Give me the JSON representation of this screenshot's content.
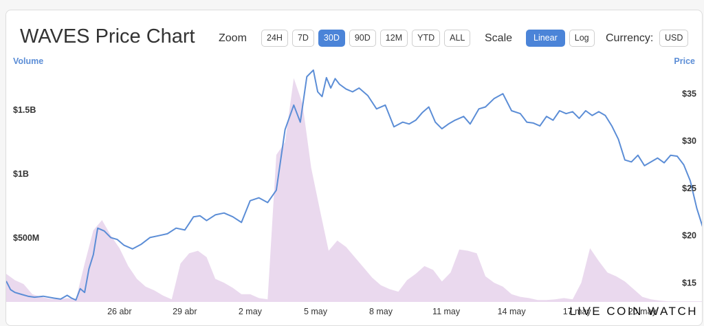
{
  "header": {
    "title": "WAVES Price Chart",
    "zoom_label": "Zoom",
    "zoom_options": [
      "24H",
      "7D",
      "30D",
      "90D",
      "12M",
      "YTD",
      "ALL"
    ],
    "zoom_active": "30D",
    "scale_label": "Scale",
    "scale_options": [
      "Linear",
      "Log"
    ],
    "scale_active": "Linear",
    "currency_label": "Currency:",
    "currency_value": "USD"
  },
  "watermark": "LIVE COIN WATCH",
  "colors": {
    "price_line": "#5b8dd6",
    "volume_area": "#ead9ee",
    "active_button": "#4b84d8"
  },
  "chart_data": {
    "type": "line",
    "title": "WAVES Price Chart",
    "x_tick_labels": [
      "26 abr",
      "29 abr",
      "2 may",
      "5 may",
      "8 may",
      "11 may",
      "14 may",
      "17 may",
      "20 may"
    ],
    "x_range_days": [
      -5.2,
      26.8
    ],
    "price_axis": {
      "label": "Price",
      "ticks": [
        "$15",
        "$20",
        "$25",
        "$30",
        "$35"
      ],
      "range": [
        13,
        38
      ],
      "position": "right"
    },
    "volume_axis": {
      "label": "Volume",
      "ticks": [
        "$500M",
        "$1B",
        "$1.5B"
      ],
      "range_millions": [
        0,
        1850
      ],
      "position": "left"
    },
    "series": [
      {
        "name": "Price",
        "x_days": [
          -5.2,
          -5.0,
          -4.8,
          -4.5,
          -4.2,
          -3.9,
          -3.5,
          -3.0,
          -2.7,
          -2.4,
          -2.2,
          -2.0,
          -1.8,
          -1.6,
          -1.4,
          -1.2,
          -1.0,
          -0.7,
          -0.4,
          -0.1,
          0.2,
          0.6,
          1.0,
          1.4,
          1.8,
          2.2,
          2.6,
          3.0,
          3.2,
          3.4,
          3.7,
          4.0,
          4.4,
          4.8,
          5.2,
          5.6,
          6.0,
          6.4,
          6.8,
          7.2,
          7.6,
          8.0,
          8.3,
          8.6,
          8.9,
          9.1,
          9.3,
          9.5,
          9.7,
          9.9,
          10.1,
          10.4,
          10.7,
          11.0,
          11.4,
          11.8,
          12.2,
          12.6,
          13.0,
          13.3,
          13.6,
          13.9,
          14.2,
          14.5,
          14.8,
          15.1,
          15.4,
          15.8,
          16.1,
          16.5,
          16.8,
          17.2,
          17.6,
          18.0,
          18.4,
          18.7,
          19.0,
          19.3,
          19.6,
          19.9,
          20.2,
          20.5,
          20.8,
          21.1,
          21.4,
          21.7,
          22.0,
          22.3,
          22.6,
          22.9,
          23.2,
          23.5,
          23.8,
          24.1,
          24.4,
          24.7,
          25.0,
          25.3,
          25.6,
          25.9,
          26.2,
          26.5,
          26.8
        ],
        "values": [
          15.2,
          14.3,
          14.0,
          13.8,
          13.6,
          13.5,
          13.6,
          13.4,
          13.3,
          13.7,
          13.4,
          13.2,
          14.4,
          14.0,
          16.5,
          18.0,
          20.8,
          20.5,
          19.8,
          19.6,
          19.0,
          18.6,
          19.1,
          19.8,
          20.0,
          20.2,
          20.8,
          20.6,
          21.3,
          22.0,
          22.1,
          21.6,
          22.2,
          22.4,
          22.0,
          21.4,
          23.7,
          24.0,
          23.5,
          24.8,
          31.2,
          33.8,
          32.0,
          36.8,
          37.5,
          35.2,
          34.7,
          36.7,
          35.6,
          36.6,
          36.0,
          35.5,
          35.2,
          35.6,
          34.8,
          33.4,
          33.8,
          31.5,
          32.0,
          31.8,
          32.2,
          33.0,
          33.6,
          32.0,
          31.3,
          31.8,
          32.2,
          32.6,
          31.8,
          33.4,
          33.6,
          34.5,
          35.0,
          33.2,
          32.9,
          32.0,
          31.9,
          31.6,
          32.6,
          32.2,
          33.2,
          32.9,
          33.1,
          32.4,
          33.2,
          32.7,
          33.1,
          32.7,
          31.6,
          30.2,
          28.0,
          27.8,
          28.5,
          27.4,
          27.8,
          28.2,
          27.7,
          28.5,
          28.4,
          27.5,
          25.8,
          22.9,
          20.7
        ]
      },
      {
        "name": "Volume",
        "x_days": [
          -5.2,
          -4.8,
          -4.4,
          -4.0,
          -3.6,
          -3.2,
          -2.8,
          -2.4,
          -2.0,
          -1.6,
          -1.2,
          -0.8,
          -0.4,
          0.0,
          0.4,
          0.8,
          1.2,
          1.6,
          2.0,
          2.4,
          2.8,
          3.2,
          3.6,
          4.0,
          4.4,
          4.8,
          5.2,
          5.6,
          6.0,
          6.4,
          6.8,
          7.2,
          7.6,
          8.0,
          8.4,
          8.8,
          9.2,
          9.6,
          10.0,
          10.4,
          10.8,
          11.2,
          11.6,
          12.0,
          12.4,
          12.8,
          13.2,
          13.6,
          14.0,
          14.4,
          14.8,
          15.2,
          15.6,
          16.0,
          16.4,
          16.8,
          17.2,
          17.6,
          18.0,
          18.4,
          18.8,
          19.2,
          19.6,
          20.0,
          20.4,
          20.8,
          21.2,
          21.6,
          22.0,
          22.4,
          22.8,
          23.2,
          23.6,
          24.0,
          24.4,
          24.8,
          25.2,
          25.6,
          26.0,
          26.4,
          26.8
        ],
        "values_millions": [
          220,
          170,
          140,
          60,
          40,
          25,
          20,
          30,
          20,
          300,
          560,
          640,
          520,
          420,
          280,
          180,
          120,
          90,
          50,
          20,
          300,
          380,
          400,
          350,
          180,
          150,
          110,
          60,
          60,
          30,
          20,
          1150,
          1250,
          1750,
          1550,
          1050,
          720,
          400,
          480,
          430,
          350,
          270,
          190,
          130,
          100,
          80,
          170,
          220,
          280,
          250,
          160,
          230,
          410,
          400,
          380,
          200,
          150,
          120,
          60,
          40,
          30,
          15,
          15,
          20,
          30,
          20,
          150,
          420,
          320,
          230,
          200,
          160,
          100,
          40,
          20,
          10,
          5,
          5,
          5,
          5,
          5
        ]
      }
    ]
  }
}
